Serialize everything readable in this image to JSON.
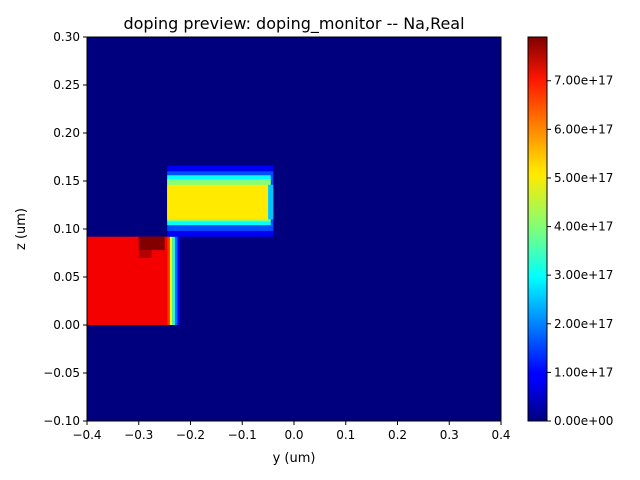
{
  "chart_data": {
    "type": "heatmap",
    "title": "doping preview: doping_monitor -- Na,Real",
    "xlabel": "y (um)",
    "ylabel": "z (um)",
    "xlim": [
      -0.4,
      0.4
    ],
    "ylim": [
      -0.1,
      0.3
    ],
    "xticks": [
      -0.4,
      -0.3,
      -0.2,
      -0.1,
      0.0,
      0.1,
      0.2,
      0.3,
      0.4
    ],
    "xtick_labels": [
      "−0.4",
      "−0.3",
      "−0.2",
      "−0.1",
      "0.0",
      "0.1",
      "0.2",
      "0.3",
      "0.4"
    ],
    "yticks": [
      -0.1,
      -0.05,
      0.0,
      0.05,
      0.1,
      0.15,
      0.2,
      0.25,
      0.3
    ],
    "ytick_labels": [
      "−0.10",
      "−0.05",
      "0.00",
      "0.05",
      "0.10",
      "0.15",
      "0.20",
      "0.25",
      "0.30"
    ],
    "colormap": "jet",
    "background_value": 0,
    "colorbar": {
      "vmin": 0,
      "vmax": 7.9e+17,
      "ticks": [
        0,
        1e+17,
        2e+17,
        3e+17,
        4e+17,
        5e+17,
        6e+17,
        7e+17
      ],
      "tick_labels": [
        "0.00e+00",
        "1.00e+17",
        "2.00e+17",
        "3.00e+17",
        "4.00e+17",
        "5.00e+17",
        "6.00e+17",
        "7.00e+17"
      ]
    },
    "regions": [
      {
        "y": [
          -0.4,
          -0.245
        ],
        "z": [
          0.0,
          0.092
        ],
        "value": 7e+17
      },
      {
        "y": [
          -0.245,
          -0.24
        ],
        "z": [
          0.0,
          0.092
        ],
        "value": 6.5e+17
      },
      {
        "y": [
          -0.24,
          -0.235
        ],
        "z": [
          0.0,
          0.092
        ],
        "value": 4.8e+17
      },
      {
        "y": [
          -0.235,
          -0.23
        ],
        "z": [
          0.0,
          0.092
        ],
        "value": 3.2e+17
      },
      {
        "y": [
          -0.23,
          -0.225
        ],
        "z": [
          0.0,
          0.092
        ],
        "value": 1.8e+17
      },
      {
        "y": [
          -0.225,
          -0.22
        ],
        "z": [
          0.0,
          0.092
        ],
        "value": 8e+16
      },
      {
        "y": [
          -0.3,
          -0.25
        ],
        "z": [
          0.078,
          0.092
        ],
        "value": 7.9e+17
      },
      {
        "y": [
          -0.3,
          -0.275
        ],
        "z": [
          0.07,
          0.078
        ],
        "value": 7.5e+17
      },
      {
        "y": [
          -0.245,
          -0.04
        ],
        "z": [
          0.092,
          0.166
        ],
        "value": 9e+16
      },
      {
        "y": [
          -0.245,
          -0.04
        ],
        "z": [
          0.098,
          0.16
        ],
        "value": 1.6e+17
      },
      {
        "y": [
          -0.245,
          -0.045
        ],
        "z": [
          0.104,
          0.156
        ],
        "value": 3e+17
      },
      {
        "y": [
          -0.245,
          -0.045
        ],
        "z": [
          0.108,
          0.152
        ],
        "value": 4e+17
      },
      {
        "y": [
          -0.245,
          -0.05
        ],
        "z": [
          0.11,
          0.146
        ],
        "value": 5.1e+17
      },
      {
        "y": [
          -0.05,
          -0.04
        ],
        "z": [
          0.11,
          0.146
        ],
        "value": 2.5e+17
      }
    ]
  }
}
